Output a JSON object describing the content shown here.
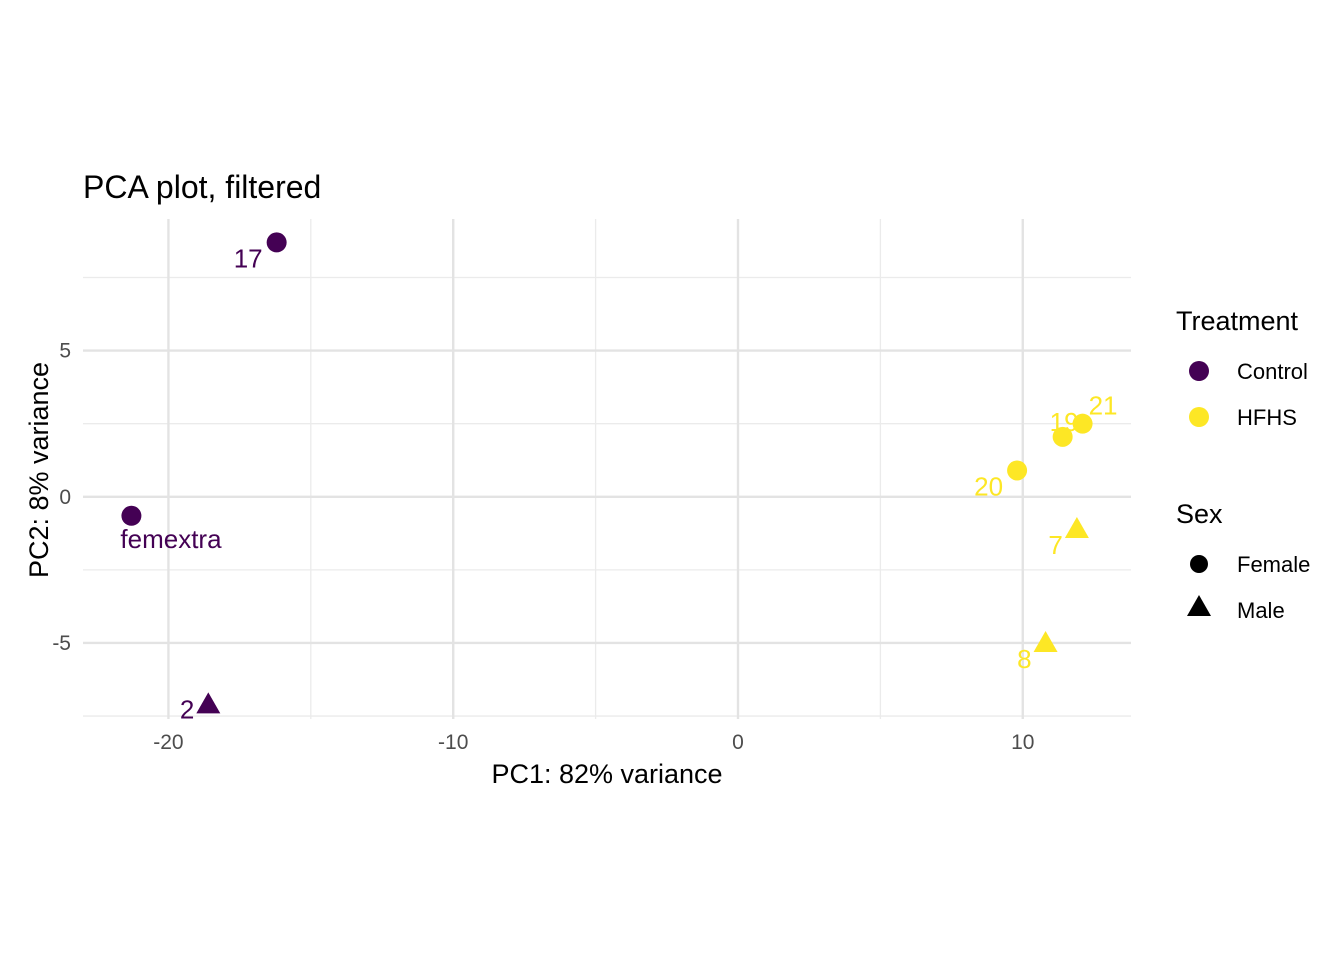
{
  "chart_data": {
    "type": "scatter",
    "title": "PCA plot, filtered",
    "xlabel": "PC1: 82% variance",
    "ylabel": "PC2: 8% variance",
    "xlim": [
      -23,
      13.8
    ],
    "ylim": [
      -7.6,
      9.5
    ],
    "x_ticks": [
      -20,
      -10,
      0,
      10
    ],
    "x_tick_labels": [
      "-20",
      "-10",
      "0",
      "10"
    ],
    "y_ticks": [
      -5,
      0,
      5
    ],
    "y_tick_labels": [
      "-5",
      "0",
      "5"
    ],
    "grid": true,
    "legend_position": "right",
    "legend": {
      "treatment_title": "Treatment",
      "treatment": [
        {
          "label": "Control",
          "color": "#440154"
        },
        {
          "label": "HFHS",
          "color": "#FDE725"
        }
      ],
      "sex_title": "Sex",
      "sex": [
        {
          "label": "Female",
          "shape": "circle"
        },
        {
          "label": "Male",
          "shape": "triangle"
        }
      ]
    },
    "points": [
      {
        "label": "17",
        "x": -16.2,
        "y": 8.7,
        "treatment": "Control",
        "sex": "Female",
        "label_anchor": "below-left"
      },
      {
        "label": "femextra",
        "x": -21.3,
        "y": -0.65,
        "treatment": "Control",
        "sex": "Female",
        "label_anchor": "below-right"
      },
      {
        "label": "2",
        "x": -18.6,
        "y": -7.1,
        "treatment": "Control",
        "sex": "Male",
        "label_anchor": "left"
      },
      {
        "label": "21",
        "x": 12.1,
        "y": 2.5,
        "treatment": "HFHS",
        "sex": "Female",
        "label_anchor": "above-right"
      },
      {
        "label": "19",
        "x": 11.4,
        "y": 2.05,
        "treatment": "HFHS",
        "sex": "Female",
        "label_anchor": "above-left"
      },
      {
        "label": "20",
        "x": 9.8,
        "y": 0.9,
        "treatment": "HFHS",
        "sex": "Female",
        "label_anchor": "below-left"
      },
      {
        "label": "7",
        "x": 11.9,
        "y": -1.1,
        "treatment": "HFHS",
        "sex": "Male",
        "label_anchor": "below-left"
      },
      {
        "label": "8",
        "x": 10.8,
        "y": -5.0,
        "treatment": "HFHS",
        "sex": "Male",
        "label_anchor": "below-left"
      }
    ]
  }
}
